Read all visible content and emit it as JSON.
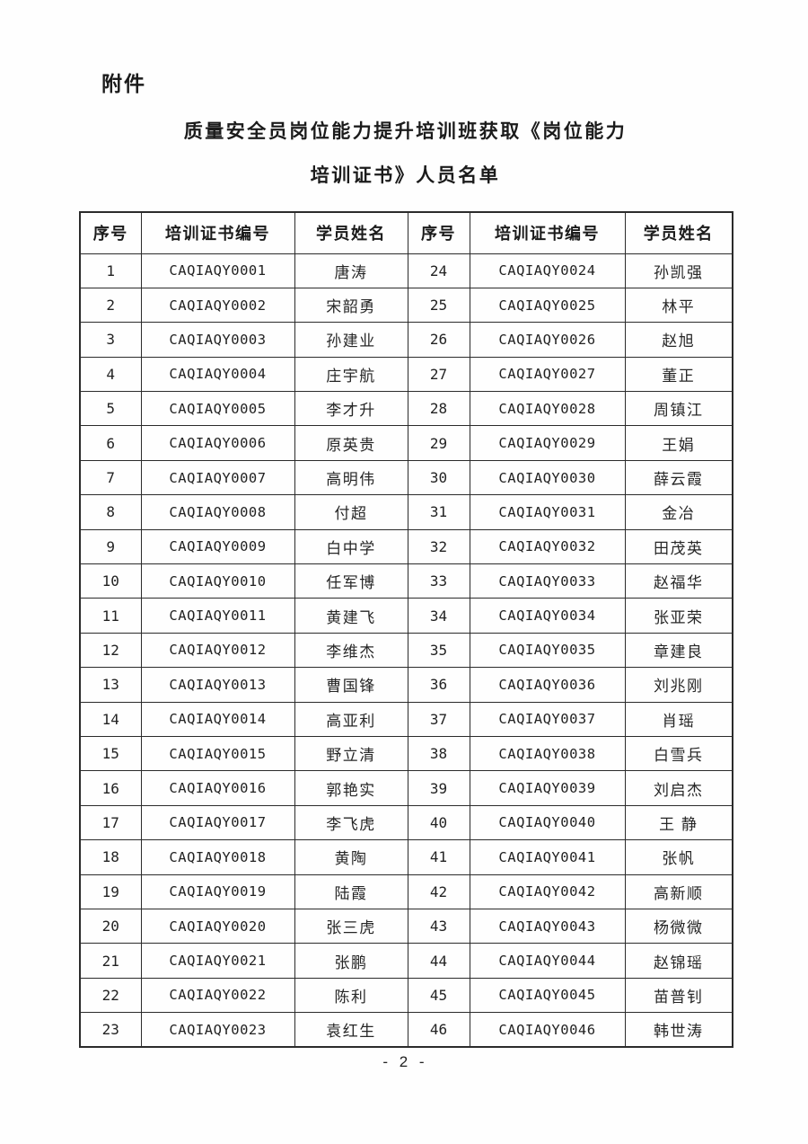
{
  "page": {
    "attachment_label": "附件",
    "title_line1": "质量安全员岗位能力提升培训班获取《岗位能力",
    "title_line2": "培训证书》人员名单",
    "page_number": "- 2 -"
  },
  "table": {
    "headers": [
      "序号",
      "培训证书编号",
      "学员姓名",
      "序号",
      "培训证书编号",
      "学员姓名"
    ],
    "rows": [
      [
        "1",
        "CAQIAQY0001",
        "唐涛",
        "24",
        "CAQIAQY0024",
        "孙凯强"
      ],
      [
        "2",
        "CAQIAQY0002",
        "宋韶勇",
        "25",
        "CAQIAQY0025",
        "林平"
      ],
      [
        "3",
        "CAQIAQY0003",
        "孙建业",
        "26",
        "CAQIAQY0026",
        "赵旭"
      ],
      [
        "4",
        "CAQIAQY0004",
        "庄宇航",
        "27",
        "CAQIAQY0027",
        "董正"
      ],
      [
        "5",
        "CAQIAQY0005",
        "李才升",
        "28",
        "CAQIAQY0028",
        "周镇江"
      ],
      [
        "6",
        "CAQIAQY0006",
        "原英贵",
        "29",
        "CAQIAQY0029",
        "王娟"
      ],
      [
        "7",
        "CAQIAQY0007",
        "高明伟",
        "30",
        "CAQIAQY0030",
        "薛云霞"
      ],
      [
        "8",
        "CAQIAQY0008",
        "付超",
        "31",
        "CAQIAQY0031",
        "金冶"
      ],
      [
        "9",
        "CAQIAQY0009",
        "白中学",
        "32",
        "CAQIAQY0032",
        "田茂英"
      ],
      [
        "10",
        "CAQIAQY0010",
        "任军博",
        "33",
        "CAQIAQY0033",
        "赵福华"
      ],
      [
        "11",
        "CAQIAQY0011",
        "黄建飞",
        "34",
        "CAQIAQY0034",
        "张亚荣"
      ],
      [
        "12",
        "CAQIAQY0012",
        "李维杰",
        "35",
        "CAQIAQY0035",
        "章建良"
      ],
      [
        "13",
        "CAQIAQY0013",
        "曹国锋",
        "36",
        "CAQIAQY0036",
        "刘兆刚"
      ],
      [
        "14",
        "CAQIAQY0014",
        "高亚利",
        "37",
        "CAQIAQY0037",
        "肖瑶"
      ],
      [
        "15",
        "CAQIAQY0015",
        "野立清",
        "38",
        "CAQIAQY0038",
        "白雪兵"
      ],
      [
        "16",
        "CAQIAQY0016",
        "郭艳实",
        "39",
        "CAQIAQY0039",
        "刘启杰"
      ],
      [
        "17",
        "CAQIAQY0017",
        "李飞虎",
        "40",
        "CAQIAQY0040",
        "王 静"
      ],
      [
        "18",
        "CAQIAQY0018",
        "黄陶",
        "41",
        "CAQIAQY0041",
        "张帆"
      ],
      [
        "19",
        "CAQIAQY0019",
        "陆霞",
        "42",
        "CAQIAQY0042",
        "高新顺"
      ],
      [
        "20",
        "CAQIAQY0020",
        "张三虎",
        "43",
        "CAQIAQY0043",
        "杨微微"
      ],
      [
        "21",
        "CAQIAQY0021",
        "张鹏",
        "44",
        "CAQIAQY0044",
        "赵锦瑶"
      ],
      [
        "22",
        "CAQIAQY0022",
        "陈利",
        "45",
        "CAQIAQY0045",
        "苗普钊"
      ],
      [
        "23",
        "CAQIAQY0023",
        "袁红生",
        "46",
        "CAQIAQY0046",
        "韩世涛"
      ]
    ]
  }
}
